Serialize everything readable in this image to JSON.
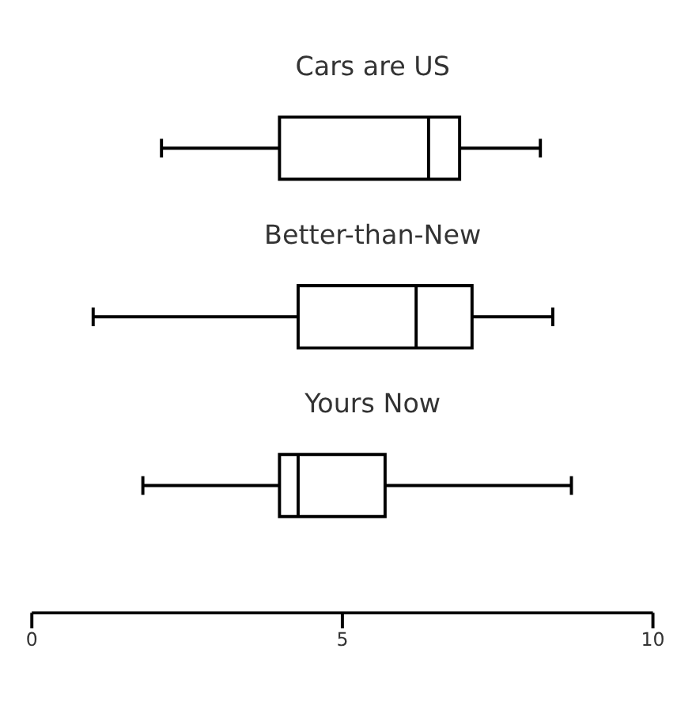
{
  "chart_data": {
    "type": "box",
    "categories": [
      "Cars are US",
      "Better-than-New",
      "Yours Now"
    ],
    "boxes": [
      {
        "low": 2.1,
        "q1": 4.0,
        "median": 6.4,
        "q3": 6.9,
        "high": 8.2
      },
      {
        "low": 1.0,
        "q1": 4.3,
        "median": 6.2,
        "q3": 7.1,
        "high": 8.4
      },
      {
        "low": 1.8,
        "q1": 4.0,
        "median": 4.3,
        "q3": 5.7,
        "high": 8.7
      }
    ],
    "orientation": "horizontal",
    "xlim": [
      0,
      10
    ],
    "xticks": [
      0,
      5,
      10
    ],
    "grid": false,
    "color": "#ffffff"
  }
}
